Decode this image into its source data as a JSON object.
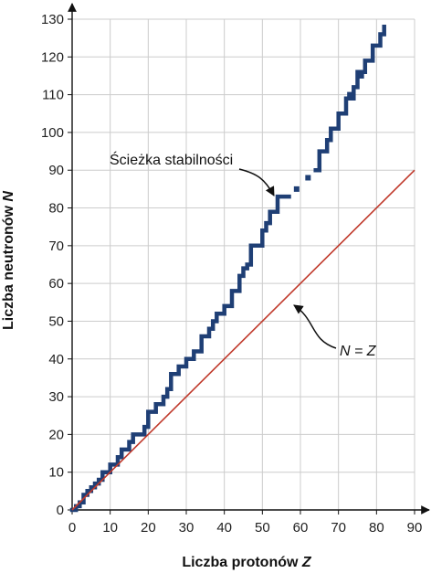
{
  "chart_data": {
    "type": "line",
    "xlabel": "Liczba protonów",
    "xlabel_var": "Z",
    "ylabel": "Liczba neutronów",
    "ylabel_var": "N",
    "xlim": [
      0,
      90
    ],
    "ylim": [
      0,
      130
    ],
    "xticks": [
      0,
      10,
      20,
      30,
      40,
      50,
      60,
      70,
      80,
      90
    ],
    "yticks": [
      0,
      10,
      20,
      30,
      40,
      50,
      60,
      70,
      80,
      90,
      100,
      110,
      120,
      130
    ],
    "grid": true,
    "colors": {
      "stability": "#1f3f75",
      "nz_line": "#c0392b",
      "grid": "#cccccc"
    },
    "series": [
      {
        "id": "stability",
        "points": [
          [
            0,
            0
          ],
          [
            1,
            0
          ],
          [
            1,
            1
          ],
          [
            2,
            1
          ],
          [
            2,
            2
          ],
          [
            3,
            2
          ],
          [
            3,
            4
          ],
          [
            4,
            4
          ],
          [
            4,
            5
          ],
          [
            5,
            5
          ],
          [
            5,
            6
          ],
          [
            6,
            6
          ],
          [
            6,
            7
          ],
          [
            7,
            7
          ],
          [
            7,
            8
          ],
          [
            8,
            8
          ],
          [
            8,
            10
          ],
          [
            10,
            10
          ],
          [
            10,
            12
          ],
          [
            12,
            12
          ],
          [
            12,
            14
          ],
          [
            13,
            14
          ],
          [
            13,
            16
          ],
          [
            15,
            16
          ],
          [
            15,
            18
          ],
          [
            16,
            18
          ],
          [
            16,
            20
          ],
          [
            19,
            20
          ],
          [
            19,
            22
          ],
          [
            20,
            22
          ],
          [
            20,
            26
          ],
          [
            22,
            26
          ],
          [
            22,
            28
          ],
          [
            24,
            28
          ],
          [
            24,
            30
          ],
          [
            25,
            30
          ],
          [
            25,
            32
          ],
          [
            26,
            32
          ],
          [
            26,
            36
          ],
          [
            28,
            36
          ],
          [
            28,
            38
          ],
          [
            30,
            38
          ],
          [
            30,
            40
          ],
          [
            32,
            40
          ],
          [
            32,
            42
          ],
          [
            34,
            42
          ],
          [
            34,
            46
          ],
          [
            36,
            46
          ],
          [
            36,
            48
          ],
          [
            37,
            48
          ],
          [
            37,
            50
          ],
          [
            38,
            50
          ],
          [
            38,
            52
          ],
          [
            40,
            52
          ],
          [
            40,
            54
          ],
          [
            42,
            54
          ],
          [
            42,
            58
          ],
          [
            44,
            58
          ],
          [
            44,
            62
          ],
          [
            45,
            62
          ],
          [
            45,
            64
          ],
          [
            46,
            64
          ],
          [
            46,
            65
          ],
          [
            47,
            65
          ],
          [
            47,
            70
          ],
          [
            50,
            70
          ],
          [
            50,
            74
          ],
          [
            51,
            74
          ],
          [
            51,
            76
          ],
          [
            52,
            76
          ],
          [
            52,
            79
          ],
          [
            54,
            79
          ],
          [
            54,
            83
          ],
          [
            57,
            83
          ]
        ]
      },
      {
        "id": "stability-upper",
        "points": [
          [
            64,
            90
          ],
          [
            65,
            90
          ],
          [
            65,
            95
          ],
          [
            67,
            95
          ],
          [
            67,
            98
          ],
          [
            68,
            98
          ],
          [
            68,
            101
          ],
          [
            70,
            101
          ],
          [
            70,
            105
          ],
          [
            72,
            105
          ],
          [
            72,
            109
          ],
          [
            74,
            109
          ],
          [
            74,
            112
          ],
          [
            75,
            112
          ],
          [
            75,
            116
          ],
          [
            77,
            116
          ],
          [
            77,
            119
          ],
          [
            79,
            119
          ],
          [
            79,
            123
          ],
          [
            81,
            123
          ],
          [
            81,
            126
          ],
          [
            82,
            126
          ],
          [
            82,
            128
          ]
        ]
      },
      {
        "id": "nz",
        "points": [
          [
            0,
            0
          ],
          [
            90,
            90
          ]
        ]
      }
    ],
    "annotations": [
      {
        "text": "Ścieżka stabilności",
        "at": [
          52,
          80
        ]
      },
      {
        "text": "N = Z",
        "at": [
          60,
          60
        ]
      }
    ]
  }
}
